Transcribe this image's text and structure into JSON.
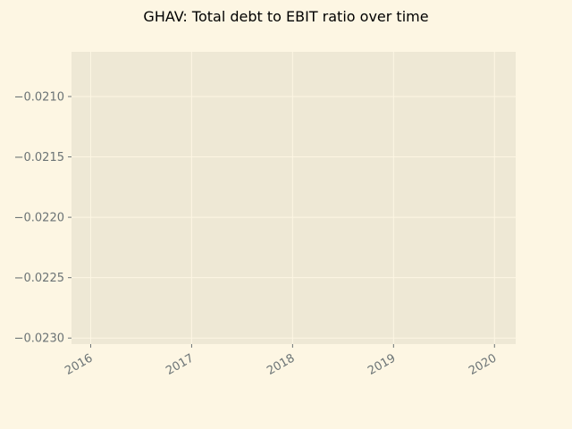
{
  "chart_data": {
    "type": "line",
    "title": "GHAV: Total debt to EBIT ratio over time",
    "xlabel": "",
    "ylabel": "",
    "x_ticks": [
      "2016",
      "2017",
      "2018",
      "2019",
      "2020"
    ],
    "y_ticks": [
      -0.021,
      -0.0215,
      -0.022,
      -0.0225,
      -0.023
    ],
    "y_tick_labels": [
      "−0.0210",
      "−0.0215",
      "−0.0220",
      "−0.0225",
      "−0.0230"
    ],
    "xlim": [
      2015.81,
      2020.21
    ],
    "ylim": [
      -0.02305,
      -0.02063
    ],
    "grid": true,
    "series": [
      {
        "name": "Total debt to EBIT",
        "x": [],
        "values": []
      }
    ]
  },
  "colors": {
    "background": "#fdf6e3",
    "plot_area": "#eee8d5",
    "grid": "#fdf6e3",
    "tick_text": "#6b7375",
    "title": "#000000"
  }
}
